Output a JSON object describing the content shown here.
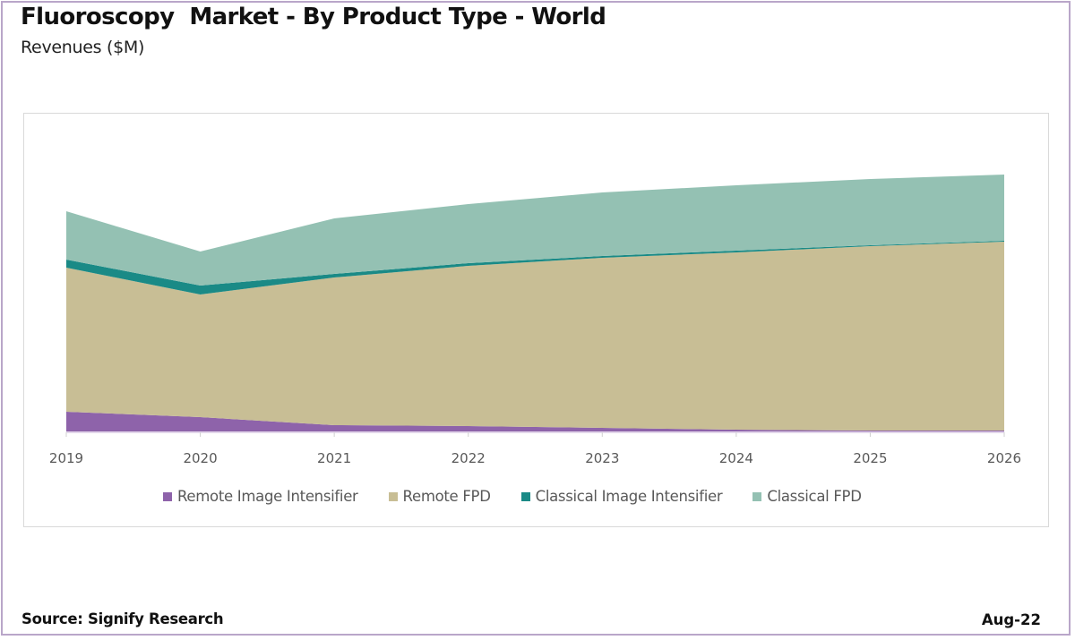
{
  "header": {
    "title": "Fluoroscopy  Market - By Product Type - World",
    "subtitle": "Revenues ($M)"
  },
  "footer": {
    "source": "Source: Signify Research",
    "date": "Aug-22"
  },
  "chart_data": {
    "type": "area",
    "stacked": true,
    "title": "Fluoroscopy  Market - By Product Type - World",
    "ylabel": "Revenues ($M)",
    "xlabel": "",
    "categories": [
      "2019",
      "2020",
      "2021",
      "2022",
      "2023",
      "2024",
      "2025",
      "2026"
    ],
    "ylim": [
      0,
      300
    ],
    "y_axis_visible": false,
    "grid": false,
    "legend_position": "bottom",
    "series": [
      {
        "name": "Remote Image Intensifier",
        "color": "#8e63aa",
        "values": [
          22,
          16,
          7,
          6,
          4,
          2,
          1,
          1
        ]
      },
      {
        "name": "Remote FPD",
        "color": "#c8be95",
        "values": [
          161,
          137,
          165,
          179,
          190,
          198,
          206,
          211
        ]
      },
      {
        "name": "Classical Image Intensifier",
        "color": "#1a8a86",
        "values": [
          9,
          10,
          4,
          3,
          2,
          2,
          1,
          1
        ]
      },
      {
        "name": "Classical FPD",
        "color": "#94c1b3",
        "values": [
          54,
          38,
          62,
          66,
          71,
          73,
          74,
          74
        ]
      }
    ],
    "note": "values are relative estimates; chart has no y-axis scale"
  }
}
